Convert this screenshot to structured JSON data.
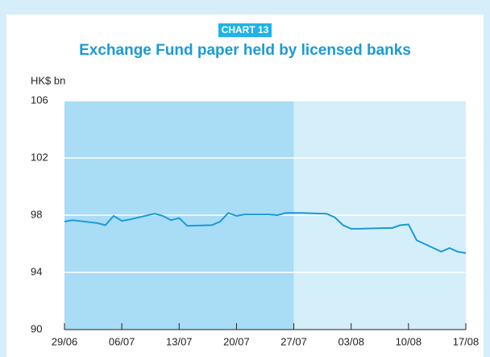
{
  "chart_data": {
    "type": "line",
    "badge": "CHART 13",
    "title": "Exchange Fund paper held by licensed banks",
    "y_label": "HK$ bn",
    "x": [
      "29/06",
      "30/06",
      "03/07",
      "04/07",
      "05/07",
      "06/07",
      "07/07",
      "10/07",
      "11/07",
      "12/07",
      "13/07",
      "14/07",
      "17/07",
      "18/07",
      "19/07",
      "20/07",
      "21/07",
      "24/07",
      "25/07",
      "26/07",
      "27/07",
      "28/07",
      "31/07",
      "01/08",
      "02/08",
      "03/08",
      "04/08",
      "07/08",
      "08/08",
      "09/08",
      "10/08",
      "11/08",
      "14/08",
      "15/08",
      "16/08",
      "17/08"
    ],
    "series": [
      {
        "name": "Exchange Fund paper",
        "color": "#1a9ad6",
        "values": [
          97.55,
          97.65,
          97.45,
          97.3,
          97.95,
          97.6,
          97.7,
          98.1,
          97.95,
          97.65,
          97.8,
          97.25,
          97.3,
          97.55,
          98.15,
          97.95,
          98.05,
          98.05,
          98.0,
          98.15,
          98.15,
          98.15,
          98.1,
          97.85,
          97.3,
          97.05,
          97.05,
          97.1,
          97.1,
          97.3,
          97.35,
          96.25,
          95.45,
          95.7,
          95.45,
          95.35
        ]
      }
    ],
    "xlim": [
      "29/06",
      "17/08"
    ],
    "xticks": [
      "29/06",
      "06/07",
      "13/07",
      "20/07",
      "27/07",
      "03/08",
      "10/08",
      "17/08"
    ],
    "shaded_until": "27/07",
    "ylim": [
      90,
      106
    ],
    "yticks": [
      90,
      94,
      98,
      102,
      106
    ],
    "grid": true
  }
}
